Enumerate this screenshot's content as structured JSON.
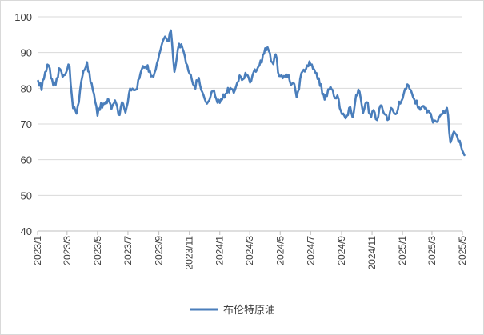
{
  "chart_data": {
    "type": "line",
    "title": "",
    "xlabel": "",
    "ylabel": "",
    "ylim": [
      40,
      100
    ],
    "yticks": [
      40,
      50,
      60,
      70,
      80,
      90,
      100
    ],
    "xlim": [
      "2023-01",
      "2025-05"
    ],
    "xticks": [
      "2023/1",
      "2023/3",
      "2023/5",
      "2023/7",
      "2023/9",
      "2023/11",
      "2024/1",
      "2024/3",
      "2024/5",
      "2024/7",
      "2024/9",
      "2024/11",
      "2025/1",
      "2025/3",
      "2025/5"
    ],
    "grid": true,
    "legend": "bottom",
    "series": [
      {
        "name": "布伦特原油",
        "color": "#4a7ebb",
        "x": [
          "2023-01-02",
          "2023-01-09",
          "2023-01-16",
          "2023-01-23",
          "2023-01-30",
          "2023-02-06",
          "2023-02-13",
          "2023-02-20",
          "2023-02-27",
          "2023-03-06",
          "2023-03-13",
          "2023-03-20",
          "2023-03-27",
          "2023-04-03",
          "2023-04-10",
          "2023-04-17",
          "2023-04-24",
          "2023-05-01",
          "2023-05-08",
          "2023-05-15",
          "2023-05-22",
          "2023-05-29",
          "2023-06-05",
          "2023-06-12",
          "2023-06-19",
          "2023-06-26",
          "2023-07-03",
          "2023-07-10",
          "2023-07-17",
          "2023-07-24",
          "2023-07-31",
          "2023-08-07",
          "2023-08-14",
          "2023-08-21",
          "2023-08-28",
          "2023-09-04",
          "2023-09-11",
          "2023-09-18",
          "2023-09-25",
          "2023-10-02",
          "2023-10-09",
          "2023-10-16",
          "2023-10-23",
          "2023-10-30",
          "2023-11-06",
          "2023-11-13",
          "2023-11-20",
          "2023-11-27",
          "2023-12-04",
          "2023-12-11",
          "2023-12-18",
          "2023-12-25",
          "2024-01-01",
          "2024-01-08",
          "2024-01-15",
          "2024-01-22",
          "2024-01-29",
          "2024-02-05",
          "2024-02-12",
          "2024-02-19",
          "2024-02-26",
          "2024-03-04",
          "2024-03-11",
          "2024-03-18",
          "2024-03-25",
          "2024-04-01",
          "2024-04-08",
          "2024-04-15",
          "2024-04-22",
          "2024-04-29",
          "2024-05-06",
          "2024-05-13",
          "2024-05-20",
          "2024-05-27",
          "2024-06-03",
          "2024-06-10",
          "2024-06-17",
          "2024-06-24",
          "2024-07-01",
          "2024-07-08",
          "2024-07-15",
          "2024-07-22",
          "2024-07-29",
          "2024-08-05",
          "2024-08-12",
          "2024-08-19",
          "2024-08-26",
          "2024-09-02",
          "2024-09-09",
          "2024-09-16",
          "2024-09-23",
          "2024-09-30",
          "2024-10-07",
          "2024-10-14",
          "2024-10-21",
          "2024-10-28",
          "2024-11-04",
          "2024-11-11",
          "2024-11-18",
          "2024-11-25",
          "2024-12-02",
          "2024-12-09",
          "2024-12-16",
          "2024-12-23",
          "2024-12-30",
          "2025-01-06",
          "2025-01-13",
          "2025-01-20",
          "2025-01-27",
          "2025-02-03",
          "2025-02-10",
          "2025-02-17",
          "2025-02-24",
          "2025-03-03",
          "2025-03-10",
          "2025-03-17",
          "2025-03-24",
          "2025-03-31",
          "2025-04-07",
          "2025-04-14",
          "2025-04-21",
          "2025-04-28",
          "2025-05-05"
        ],
        "values": [
          82.1,
          79.5,
          84.5,
          86.4,
          82.5,
          80.9,
          85.6,
          83.2,
          84.4,
          86.2,
          74.4,
          72.9,
          79.3,
          84.9,
          87.3,
          81.7,
          78.4,
          72.3,
          75.8,
          75.6,
          77.1,
          74.2,
          76.6,
          72.6,
          76.1,
          73.2,
          78.5,
          79.9,
          79.6,
          82.8,
          86.2,
          85.5,
          84.8,
          83.2,
          86.9,
          90.6,
          93.9,
          93.3,
          96.2,
          84.6,
          90.9,
          92.3,
          88.9,
          84.9,
          82.4,
          79.9,
          82.9,
          78.9,
          76.2,
          76.6,
          79.2,
          77.0,
          75.9,
          78.3,
          78.6,
          80.1,
          78.7,
          81.6,
          83.2,
          82.8,
          83.6,
          82.1,
          85.3,
          86.0,
          87.2,
          91.2,
          90.5,
          87.3,
          89.5,
          83.4,
          82.8,
          83.9,
          82.1,
          81.6,
          77.5,
          82.6,
          85.2,
          86.4,
          86.5,
          85.3,
          82.6,
          81.1,
          76.8,
          79.7,
          79.7,
          77.2,
          76.9,
          72.7,
          71.6,
          74.5,
          71.9,
          78.1,
          79.0,
          73.1,
          76.1,
          72.8,
          73.9,
          71.1,
          75.2,
          72.9,
          71.1,
          74.5,
          72.9,
          74.2,
          76.5,
          79.8,
          80.8,
          78.5,
          75.7,
          74.7,
          75.0,
          74.5,
          73.2,
          70.4,
          70.6,
          72.2,
          73.6,
          74.5,
          64.8,
          67.9,
          66.3,
          63.9,
          61.3
        ]
      }
    ]
  }
}
